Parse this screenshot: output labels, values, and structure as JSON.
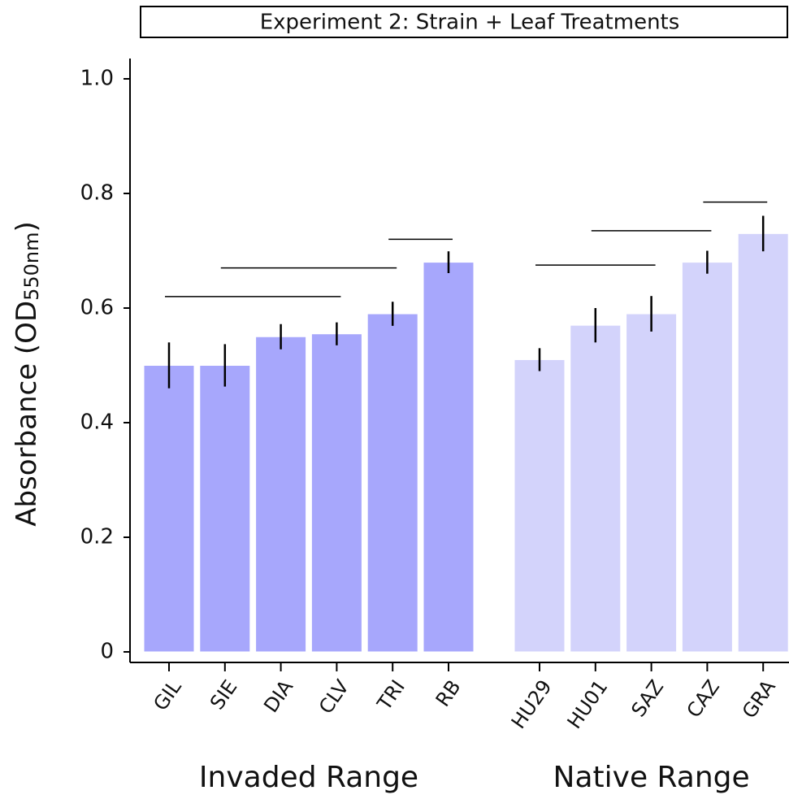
{
  "chart_data": {
    "type": "bar",
    "title": "Experiment 2: Strain + Leaf Treatments",
    "ylabel": {
      "text": "Absorbance (OD",
      "sub": "550nm",
      "end": ")"
    },
    "ylim": [
      0,
      1.0
    ],
    "yticks": [
      0,
      0.2,
      0.4,
      0.6,
      0.8,
      {
        "value": 1.0,
        "label": "1.0"
      }
    ],
    "groups": [
      {
        "name": "Invaded Range",
        "color": "#a7a7fc",
        "categories": [
          "GIL",
          "SIE",
          "DIA",
          "CLV",
          "TRI",
          "RB"
        ],
        "values": [
          0.5,
          0.5,
          0.55,
          0.555,
          0.59,
          0.68
        ],
        "errors": [
          0.04,
          0.037,
          0.022,
          0.02,
          0.021,
          0.019
        ],
        "brackets": [
          {
            "start": 0,
            "end": 3,
            "y": 0.62
          },
          {
            "start": 1,
            "end": 4,
            "y": 0.67
          },
          {
            "start": 4,
            "end": 5,
            "y": 0.72
          }
        ]
      },
      {
        "name": "Native Range",
        "color": "#d3d3fb",
        "categories": [
          "HU29",
          "HU01",
          "SAZ",
          "CAZ",
          "GRA"
        ],
        "values": [
          0.51,
          0.57,
          0.59,
          0.68,
          0.73
        ],
        "errors": [
          0.02,
          0.03,
          0.031,
          0.02,
          0.031
        ],
        "brackets": [
          {
            "start": 0,
            "end": 2,
            "y": 0.675
          },
          {
            "start": 1,
            "end": 3,
            "y": 0.735
          },
          {
            "start": 3,
            "end": 4,
            "y": 0.785
          }
        ]
      }
    ]
  }
}
